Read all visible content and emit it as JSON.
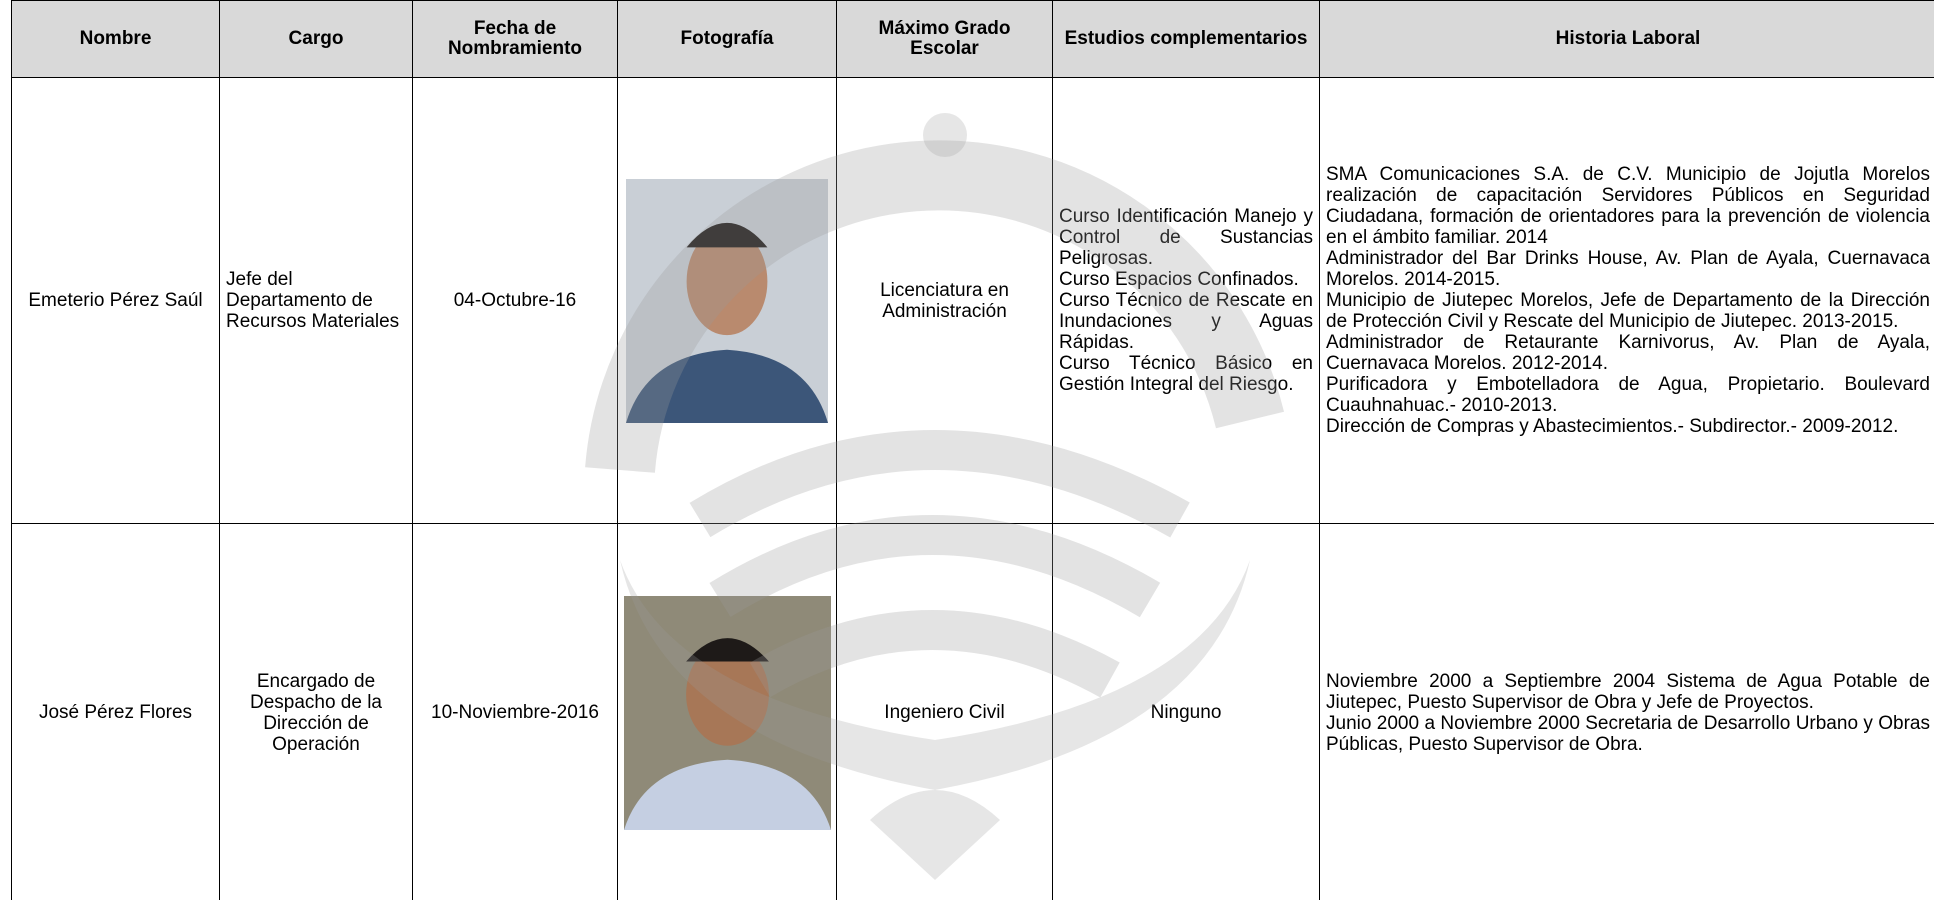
{
  "table": {
    "headers": [
      "Nombre",
      "Cargo",
      "Fecha de Nombramiento",
      "Fotografía",
      "Máximo Grado Escolar",
      "Estudios complementarios",
      "Historia Laboral"
    ],
    "rows": [
      {
        "nombre": "Emeterio Pérez Saúl",
        "cargo": "Jefe del Departamento de Recursos Materiales",
        "fecha": "04-Octubre-16",
        "grado": "Licenciatura en Administración",
        "estudios": [
          "Curso Identificación Manejo y Control de Sustancias Peligrosas.",
          "Curso Espacios Confinados.",
          "Curso Técnico de Rescate en Inundaciones y Aguas Rápidas.",
          "Curso Técnico Básico en Gestión Integral del Riesgo."
        ],
        "historia": [
          "SMA Comunicaciones S.A. de C.V. Municipio de Jojutla Morelos realización de capacitación Servidores Públicos en Seguridad Ciudadana, formación de orientadores para la prevención de violencia en el ámbito familiar. 2014",
          "Administrador del Bar Drinks House, Av. Plan de Ayala, Cuernavaca Morelos. 2014-2015.",
          "Municipio de Jiutepec Morelos, Jefe de Departamento de la Dirección de Protección Civil y Rescate del Municipio de Jiutepec. 2013-2015.",
          "Administrador de Retaurante Karnivorus, Av. Plan de Ayala, Cuernavaca Morelos. 2012-2014.",
          "Purificadora y Embotelladora de Agua, Propietario. Boulevard Cuauhnahuac.- 2010-2013.",
          "Dirección de Compras y Abastecimientos.- Subdirector.- 2009-2012."
        ]
      },
      {
        "nombre": "José Pérez Flores",
        "cargo": "Encargado de Despacho de la Dirección de Operación",
        "fecha": "10-Noviembre-2016",
        "grado": "Ingeniero Civil",
        "estudios": [
          "Ninguno"
        ],
        "historia": [
          "Noviembre 2000 a Septiembre 2004 Sistema de Agua Potable de Jiutepec, Puesto Supervisor de Obra y Jefe de Proyectos.",
          "Junio 2000 a Noviembre 2000 Secretaria de Desarrollo Urbano y Obras Públicas, Puesto Supervisor de Obra."
        ]
      }
    ]
  }
}
